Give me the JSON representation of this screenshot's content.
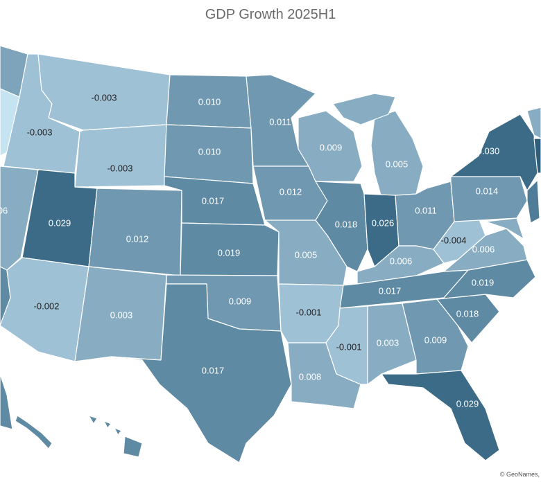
{
  "title": "GDP Growth 2025H1",
  "attribution": "© GeoNames,",
  "colors": {
    "lightest": "#c6e3f2",
    "light": "#9fc1d6",
    "midlight": "#88adc3",
    "mid": "#7099b1",
    "middark": "#5f8aa3",
    "dark": "#4f7d97",
    "darkest": "#3b6b86",
    "label_dark_text": "#222222",
    "label_light_text": "#ffffff"
  },
  "chart_data": {
    "type": "choropleth",
    "title": "GDP Growth 2025H1",
    "regions": [
      {
        "name": "Montana",
        "value": -0.003
      },
      {
        "name": "Idaho",
        "value": -0.003
      },
      {
        "name": "Wyoming",
        "value": -0.003
      },
      {
        "name": "North Dakota",
        "value": 0.01
      },
      {
        "name": "South Dakota",
        "value": 0.01
      },
      {
        "name": "Minnesota",
        "value": 0.011
      },
      {
        "name": "Wisconsin",
        "value": 0.009
      },
      {
        "name": "Michigan",
        "value": 0.005
      },
      {
        "name": "Nebraska",
        "value": 0.017
      },
      {
        "name": "Iowa",
        "value": 0.012
      },
      {
        "name": "Utah",
        "value": 0.029
      },
      {
        "name": "Colorado",
        "value": 0.012
      },
      {
        "name": "Kansas",
        "value": 0.019
      },
      {
        "name": "Missouri",
        "value": 0.005
      },
      {
        "name": "Illinois",
        "value": 0.018
      },
      {
        "name": "Indiana",
        "value": 0.026
      },
      {
        "name": "Ohio",
        "value": 0.011
      },
      {
        "name": "Pennsylvania",
        "value": 0.014
      },
      {
        "name": "New York",
        "value": 0.03
      },
      {
        "name": "West Virginia",
        "value": -0.004
      },
      {
        "name": "Virginia",
        "value": 0.006
      },
      {
        "name": "Kentucky",
        "value": 0.006
      },
      {
        "name": "Arizona",
        "value": -0.002
      },
      {
        "name": "New Mexico",
        "value": 0.003
      },
      {
        "name": "Oklahoma",
        "value": 0.009
      },
      {
        "name": "Arkansas",
        "value": -0.001
      },
      {
        "name": "Tennessee",
        "value": 0.017
      },
      {
        "name": "North Carolina",
        "value": 0.019
      },
      {
        "name": "South Carolina",
        "value": 0.018
      },
      {
        "name": "Texas",
        "value": 0.017
      },
      {
        "name": "Louisiana",
        "value": 0.008
      },
      {
        "name": "Mississippi",
        "value": -0.001
      },
      {
        "name": "Alabama",
        "value": 0.003
      },
      {
        "name": "Georgia",
        "value": 0.009
      },
      {
        "name": "Florida",
        "value": 0.029
      },
      {
        "name": "Nevada",
        "value_label": "06"
      }
    ]
  },
  "labels": {
    "MT": "-0.003",
    "ID": "-0.003",
    "WY": "-0.003",
    "ND": "0.010",
    "SD": "0.010",
    "MN": "0.011",
    "WI": "0.009",
    "MI": "0.005",
    "NE": "0.017",
    "IA": "0.012",
    "UT": "0.029",
    "CO": "0.012",
    "KS": "0.019",
    "MO": "0.005",
    "IL": "0.018",
    "IN": "0.026",
    "OH": "0.011",
    "PA": "0.014",
    "NY": "0.030",
    "WV": "-0.004",
    "VA": "0.006",
    "KY": "0.006",
    "AZ": "-0.002",
    "NM": "0.003",
    "OK": "0.009",
    "AR": "-0.001",
    "TN": "0.017",
    "NC": "0.019",
    "SC": "0.018",
    "TX": "0.017",
    "LA": "0.008",
    "MS": "-0.001",
    "AL": "0.003",
    "GA": "0.009",
    "FL": "0.029",
    "NV": "06"
  }
}
